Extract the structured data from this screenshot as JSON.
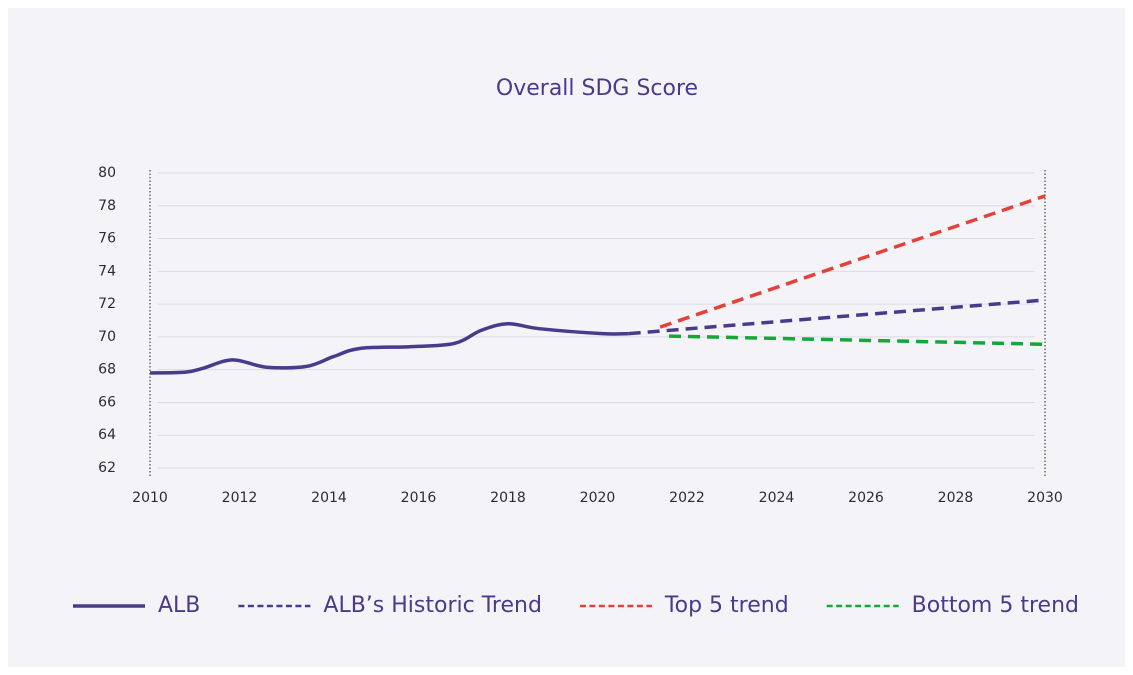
{
  "chart_data": {
    "type": "line",
    "title": "Overall SDG Score",
    "xlim": [
      2010,
      2030
    ],
    "xticks": [
      2010,
      2012,
      2014,
      2016,
      2018,
      2020,
      2022,
      2024,
      2026,
      2028,
      2030
    ],
    "ylim": [
      62,
      80
    ],
    "yticks": [
      62,
      64,
      66,
      68,
      70,
      72,
      74,
      76,
      78,
      80
    ],
    "grid": true,
    "legend": "bottom",
    "series": [
      {
        "name": "ALB",
        "color": "#4b3a8c",
        "style": "solid",
        "x": [
          2010,
          2010.8,
          2011.2,
          2011.85,
          2012.6,
          2013.5,
          2014.1,
          2014.7,
          2015.8,
          2016.8,
          2017.4,
          2018,
          2018.7,
          2020.1,
          2020.7
        ],
        "values": [
          67.8,
          67.85,
          68.1,
          68.6,
          68.15,
          68.2,
          68.8,
          69.3,
          69.4,
          69.6,
          70.4,
          70.8,
          70.5,
          70.2,
          70.2
        ]
      },
      {
        "name": "ALB’s Historic Trend",
        "color": "#4b3a8c",
        "style": "dashed",
        "x": [
          2020.7,
          2030
        ],
        "values": [
          70.2,
          72.25
        ]
      },
      {
        "name": "Top 5 trend",
        "color": "#e5413b",
        "style": "dashed",
        "x": [
          2021.4,
          2030
        ],
        "values": [
          70.6,
          78.6
        ]
      },
      {
        "name": "Bottom 5 trend",
        "color": "#14a83b",
        "style": "dashed",
        "x": [
          2021.6,
          2030
        ],
        "values": [
          70.05,
          69.55
        ]
      }
    ]
  }
}
